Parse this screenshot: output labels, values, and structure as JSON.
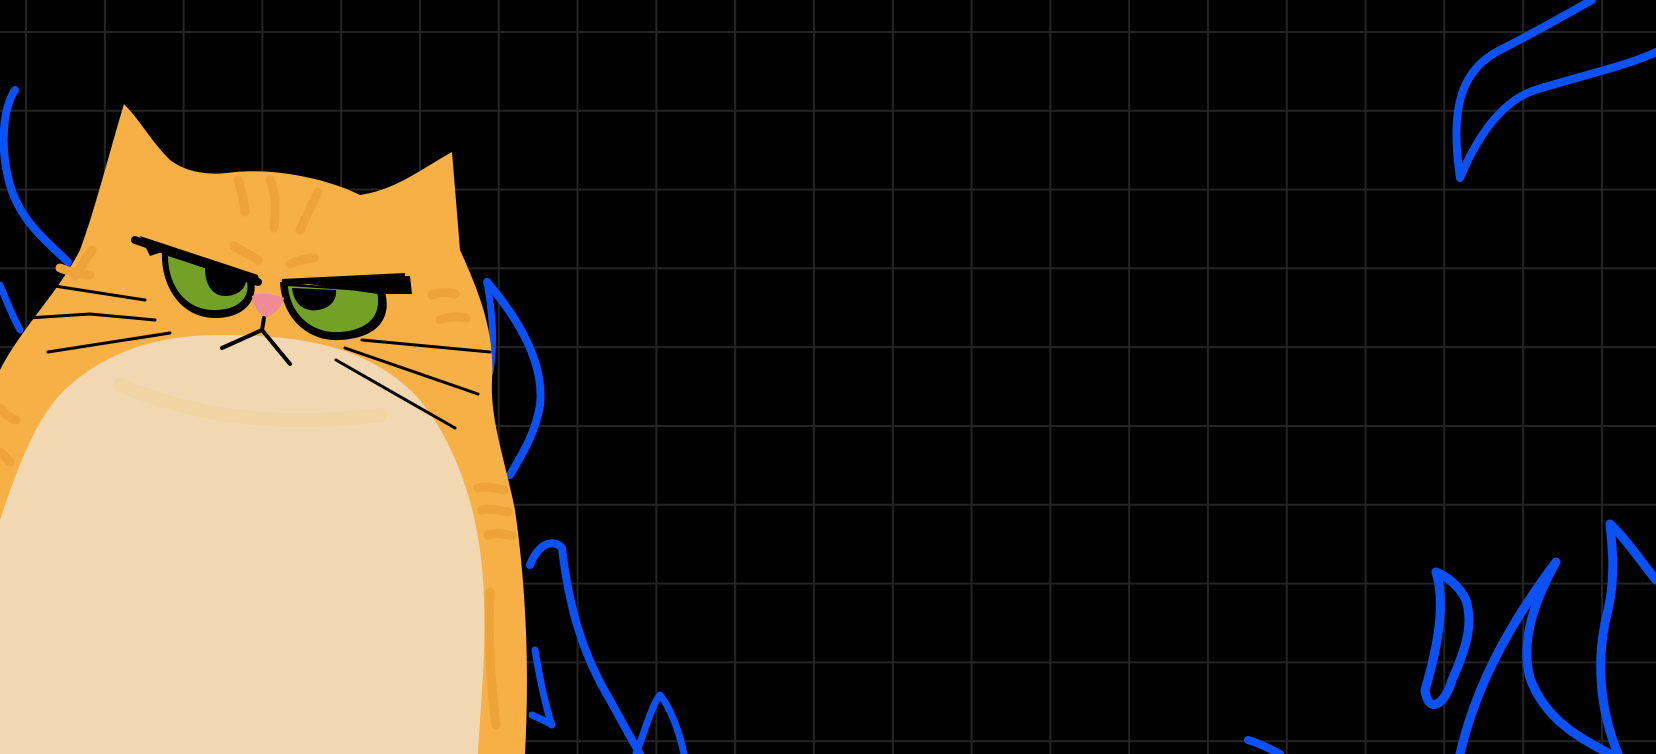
{
  "scene": {
    "background_color": "#000000",
    "grid_color": "#242424",
    "grid_visible": true
  },
  "cat": {
    "expression": "grumpy",
    "fur_color": "#F7B046",
    "stripe_color": "#EDA23A",
    "belly_color": "#F2D8B2",
    "eye_color": "#73A128",
    "pupil_color": "#000000",
    "nose_color": "#F08B96",
    "outline_color": "#000000"
  },
  "flames": {
    "color": "#0A52F5",
    "style": "outline"
  }
}
